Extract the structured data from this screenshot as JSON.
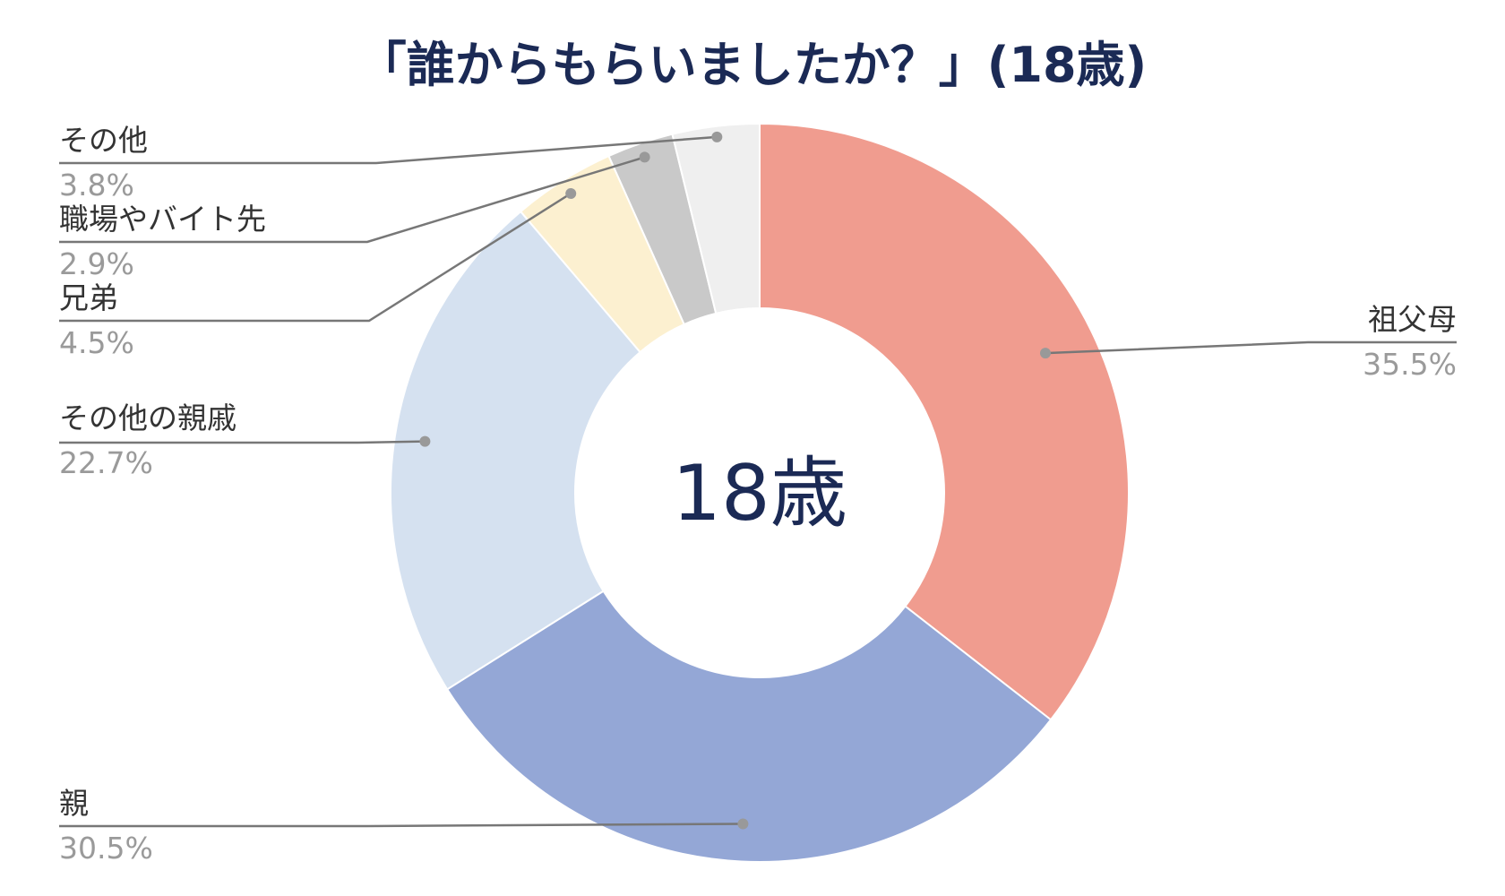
{
  "chart_data": {
    "type": "pie",
    "donut": true,
    "title": "「誰からもらいましたか？」(18歳)",
    "center_label": "18歳",
    "unit": "%",
    "slices": [
      {
        "label": "祖父母",
        "value": 35.5,
        "display": "35.5%",
        "color": "#f09c8f"
      },
      {
        "label": "親",
        "value": 30.5,
        "display": "30.5%",
        "color": "#94a7d6"
      },
      {
        "label": "その他の親戚",
        "value": 22.7,
        "display": "22.7%",
        "color": "#d5e1f0"
      },
      {
        "label": "兄弟",
        "value": 4.5,
        "display": "4.5%",
        "color": "#fcf0d0"
      },
      {
        "label": "職場やバイト先",
        "value": 2.9,
        "display": "2.9%",
        "color": "#c9c9c9"
      },
      {
        "label": "その他",
        "value": 3.8,
        "display": "3.8%",
        "color": "#efefef"
      }
    ],
    "start_angle_deg": 0,
    "direction": "clockwise",
    "legend": "none",
    "leader_line_color": "#777777",
    "leader_dot_color": "#999999"
  }
}
